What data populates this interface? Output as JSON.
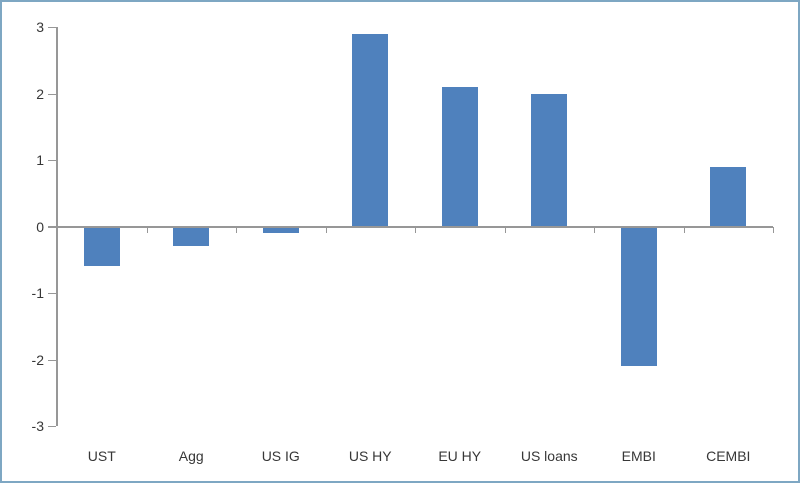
{
  "chart_data": {
    "type": "bar",
    "categories": [
      "UST",
      "Agg",
      "US IG",
      "US HY",
      "EU HY",
      "US loans",
      "EMBI",
      "CEMBI"
    ],
    "values": [
      -0.6,
      -0.3,
      -0.1,
      2.9,
      2.1,
      2.0,
      -2.1,
      0.9
    ],
    "title": "",
    "xlabel": "",
    "ylabel": "",
    "ylim": [
      -3,
      3
    ],
    "yticks": [
      3,
      2,
      1,
      0,
      -1,
      -2,
      -3
    ],
    "gridlines": false,
    "legend": false,
    "colors": {
      "bar": "#4f81bd",
      "axis": "#979797",
      "labels": "#373737",
      "frame_border": "#7ea7c3",
      "background": "#ffffff"
    }
  }
}
